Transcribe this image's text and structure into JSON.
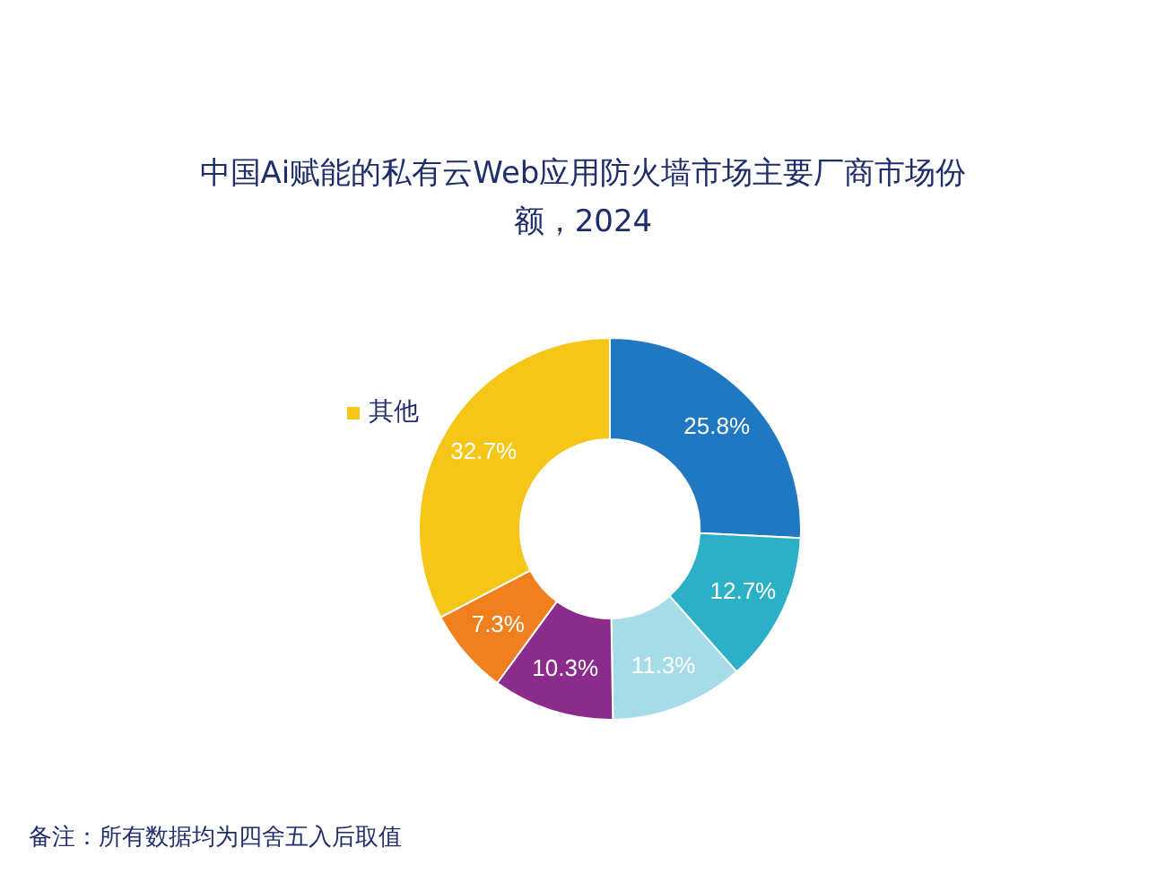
{
  "chart_data": {
    "type": "donut",
    "title": "中国Ai赋能的私有云Web应用防火墙市场主要厂商市场份额，2024",
    "categories": [
      null,
      null,
      null,
      null,
      null,
      "其他"
    ],
    "values": [
      25.8,
      12.7,
      11.3,
      10.3,
      7.3,
      32.7
    ],
    "value_labels": [
      "25.8%",
      "12.7%",
      "11.3%",
      "10.3%",
      "7.3%",
      "32.7%"
    ],
    "colors": [
      "#1f78c1",
      "#2bb0c8",
      "#a6dce8",
      "#8b2c8c",
      "#f07f1e",
      "#f5c518"
    ],
    "annotations": [
      "备注：所有数据均为四舍五入后取值"
    ]
  }
}
